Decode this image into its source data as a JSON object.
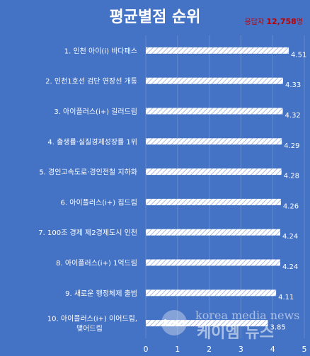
{
  "chart_data": {
    "type": "bar",
    "orientation": "horizontal",
    "title": "평균별점 순위",
    "categories": [
      "1. 인천 아이(i) 바다패스",
      "2. 인천1호선 검단 연장선 개통",
      "3. 아이플러스(i+) 길러드림",
      "4. 출생률·실질경제성장률 1위",
      "5. 경인고속도로·경인전철 지하화",
      "6. 아이플러스(i+) 집드림",
      "7. 100조 경제 제2경제도시 인천",
      "8. 아이플러스(i+) 1억드림",
      "9. 새로운 행정체제 출범",
      "10. 아이플러스(i+) 이어드림, 맺어드림"
    ],
    "values": [
      4.51,
      4.33,
      4.32,
      4.29,
      4.28,
      4.26,
      4.24,
      4.24,
      4.11,
      3.85
    ],
    "value_labels": [
      "4.51",
      "4.33",
      "4.32",
      "4.29",
      "4.28",
      "4.26",
      "4.24",
      "4.24",
      "4.11",
      "3.85"
    ],
    "xlim": [
      0,
      5
    ],
    "x_ticks": [
      "0",
      "1",
      "2",
      "3",
      "4",
      "5"
    ],
    "grid": true,
    "bar_style": "white diagonal hatch",
    "colors": {
      "background": "#4472c4",
      "bar": "#ffffff",
      "accent": "#c00000"
    }
  },
  "respondents": {
    "label": "응답자",
    "count": "12,758",
    "unit": "명"
  },
  "watermark": {
    "text": "korea media news",
    "sub": "케이엠 뉴스",
    "logo": "kmn"
  }
}
